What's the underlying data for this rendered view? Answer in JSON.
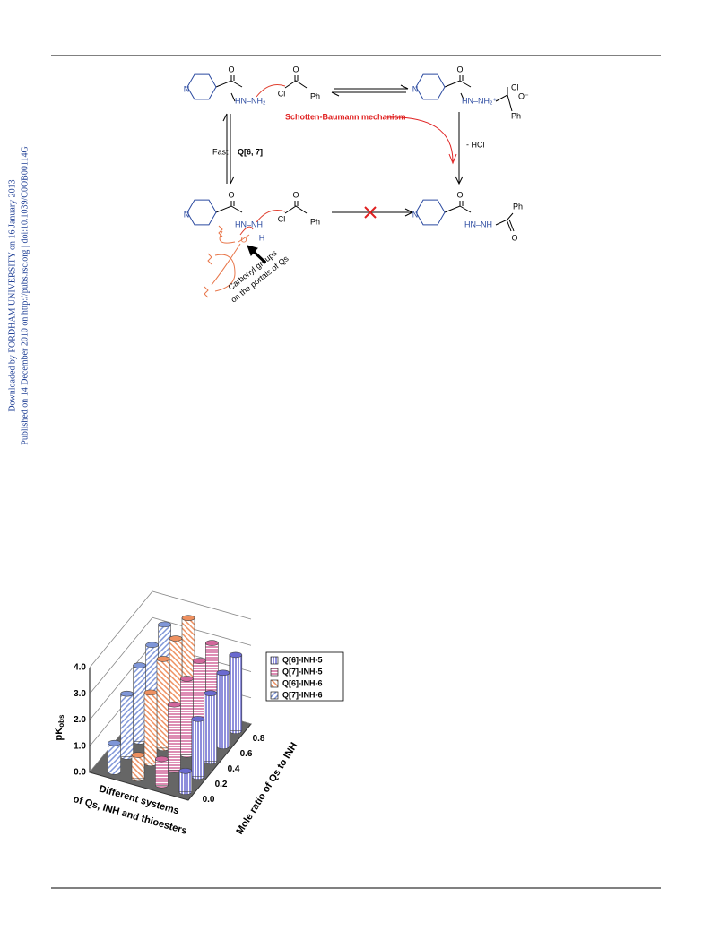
{
  "margin_note": [
    "Downloaded by FORDHAM UNIVERSITY on 16 January 2013",
    "Published on 14 December 2010 on http://pubs.rsc.org | doi:10.1039/C0OB00114G"
  ],
  "scheme": {
    "labels": [
      "N",
      "O",
      "HN–NH₂",
      "O",
      "Cl",
      "Ph",
      "N",
      "O",
      "HN–NH₂⁺",
      "Cl",
      "O⁻",
      "Ph",
      "Schotten-Baumann mechanism",
      "- HCl",
      "Fast",
      "Q[6, 7]",
      "N",
      "O",
      "HN–NH",
      "H",
      "O",
      "Cl",
      "Ph",
      "O",
      "N",
      "O",
      "HN–NH",
      "Ph",
      "O",
      "Carbonyl groups",
      "on the portals of Qs"
    ]
  },
  "chart_data": {
    "type": "bar3d",
    "y_label": "pK",
    "y_label_sub": "obs",
    "x_label": "Mole ratio of Qs to INH",
    "series_axis_label": [
      "Different systems",
      "of Qs, INH and thioesters"
    ],
    "categories": [
      "0.0",
      "0.2",
      "0.4",
      "0.6",
      "0.8"
    ],
    "ylim": [
      0,
      4
    ],
    "yticks": [
      {
        "value": 0,
        "label": "0.0"
      },
      {
        "value": 1,
        "label": "1.0"
      },
      {
        "value": 2,
        "label": "2.0"
      },
      {
        "value": 3,
        "label": "3.0"
      },
      {
        "value": 4,
        "label": "4.0"
      }
    ],
    "grid": true,
    "series": [
      {
        "name": "Q[6]-INH-5",
        "color": "#6a6ad0",
        "hatch": "vertical",
        "values": [
          0.8,
          2.2,
          2.6,
          2.8,
          2.9
        ]
      },
      {
        "name": "Q[7]-INH-5",
        "color": "#d2679c",
        "hatch": "horizontal",
        "values": [
          1.0,
          2.5,
          2.9,
          3.0,
          3.1
        ]
      },
      {
        "name": "Q[6]-INH-6",
        "color": "#ee9060",
        "hatch": "diagonal-down",
        "values": [
          0.9,
          2.7,
          3.4,
          3.6,
          3.8
        ]
      },
      {
        "name": "Q[7]-INH-6",
        "color": "#7f96d8",
        "hatch": "diagonal-up",
        "values": [
          1.1,
          2.4,
          2.9,
          3.1,
          3.3
        ]
      }
    ]
  }
}
